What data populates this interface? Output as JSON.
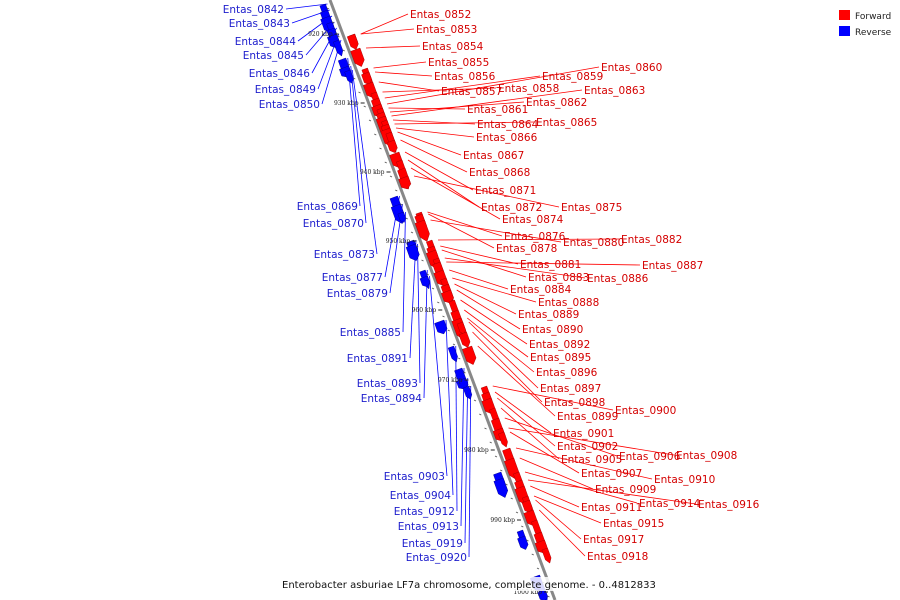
{
  "caption": "Enterobacter asburiae LF7a chromosome, complete genome. - 0..4812833",
  "colors": {
    "forward": "#ff0000",
    "reverse": "#0000ff",
    "forward_label": "#d40000",
    "reverse_label": "#1c1ccc",
    "backbone": "#888888"
  },
  "legend": [
    {
      "label": "Forward",
      "color": "#ff0000"
    },
    {
      "label": "Reverse",
      "color": "#0000ff"
    }
  ],
  "scale_ticks": [
    "920 kbp",
    "930 kbp",
    "940 kbp",
    "950 kbp",
    "960 kbp",
    "970 kbp",
    "980 kbp",
    "990 kbp",
    "1000 kbp"
  ],
  "forward_genes": [
    "Entas_0852",
    "Entas_0853",
    "Entas_0854",
    "Entas_0855",
    "Entas_0856",
    "Entas_0857",
    "Entas_0858",
    "Entas_0859",
    "Entas_0860",
    "Entas_0861",
    "Entas_0862",
    "Entas_0863",
    "Entas_0864",
    "Entas_0865",
    "Entas_0866",
    "Entas_0867",
    "Entas_0868",
    "Entas_0871",
    "Entas_0872",
    "Entas_0874",
    "Entas_0875",
    "Entas_0876",
    "Entas_0878",
    "Entas_0880",
    "Entas_0882",
    "Entas_0881",
    "Entas_0883",
    "Entas_0886",
    "Entas_0887",
    "Entas_0884",
    "Entas_0888",
    "Entas_0889",
    "Entas_0890",
    "Entas_0892",
    "Entas_0895",
    "Entas_0896",
    "Entas_0897",
    "Entas_0898",
    "Entas_0899",
    "Entas_0900",
    "Entas_0901",
    "Entas_0902",
    "Entas_0905",
    "Entas_0906",
    "Entas_0908",
    "Entas_0907",
    "Entas_0910",
    "Entas_0909",
    "Entas_0914",
    "Entas_0916",
    "Entas_0911",
    "Entas_0915",
    "Entas_0917",
    "Entas_0918"
  ],
  "reverse_genes": [
    "Entas_0842",
    "Entas_0843",
    "Entas_0844",
    "Entas_0845",
    "Entas_0846",
    "Entas_0849",
    "Entas_0850",
    "Entas_0869",
    "Entas_0870",
    "Entas_0873",
    "Entas_0877",
    "Entas_0879",
    "Entas_0885",
    "Entas_0891",
    "Entas_0893",
    "Entas_0894",
    "Entas_0903",
    "Entas_0904",
    "Entas_0912",
    "Entas_0913",
    "Entas_0919",
    "Entas_0920"
  ]
}
